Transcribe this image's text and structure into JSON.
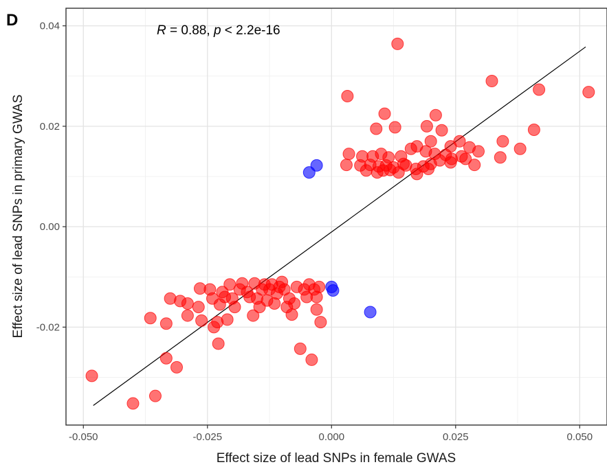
{
  "chart_data": {
    "type": "scatter",
    "panel_label": "D",
    "annotation": {
      "r_label": "R",
      "r_text": " = 0.88, ",
      "p_label": "p",
      "p_text": " < 2.2e-16"
    },
    "xlabel": "Effect size of lead SNPs in female GWAS",
    "ylabel": "Effect size of lead SNPs in primary GWAS",
    "xlim": [
      -0.0535,
      0.0555
    ],
    "ylim": [
      -0.0395,
      0.0435
    ],
    "x_ticks": [
      -0.05,
      -0.025,
      0.0,
      0.025,
      0.05
    ],
    "x_tick_labels": [
      "-0.050",
      "-0.025",
      "0.000",
      "0.025",
      "0.050"
    ],
    "y_ticks": [
      -0.02,
      0.0,
      0.02,
      0.04
    ],
    "y_tick_labels": [
      "-0.02",
      "0.00",
      "0.02",
      "0.04"
    ],
    "grid": true,
    "fit_line": {
      "x": [
        -0.048,
        0.0512
      ],
      "y": [
        -0.0356,
        0.0358
      ],
      "color": "#000000"
    },
    "series": [
      {
        "color": "#ff0000",
        "opacity": 0.55,
        "points": [
          [
            0.0133,
            0.0364
          ],
          [
            0.0032,
            0.026
          ],
          [
            0.0323,
            0.029
          ],
          [
            0.0418,
            0.0273
          ],
          [
            0.0518,
            0.0268
          ],
          [
            0.0107,
            0.0225
          ],
          [
            0.021,
            0.0222
          ],
          [
            0.009,
            0.0195
          ],
          [
            0.0128,
            0.0198
          ],
          [
            0.0192,
            0.02
          ],
          [
            0.0222,
            0.0192
          ],
          [
            0.0408,
            0.0193
          ],
          [
            0.02,
            0.017
          ],
          [
            0.024,
            0.016
          ],
          [
            0.0258,
            0.017
          ],
          [
            0.0278,
            0.0158
          ],
          [
            0.0345,
            0.017
          ],
          [
            0.038,
            0.0155
          ],
          [
            0.0035,
            0.0145
          ],
          [
            0.0062,
            0.014
          ],
          [
            0.0083,
            0.014
          ],
          [
            0.01,
            0.0145
          ],
          [
            0.0115,
            0.0138
          ],
          [
            0.014,
            0.014
          ],
          [
            0.016,
            0.0155
          ],
          [
            0.0172,
            0.016
          ],
          [
            0.019,
            0.015
          ],
          [
            0.0208,
            0.0145
          ],
          [
            0.023,
            0.0143
          ],
          [
            0.0262,
            0.014
          ],
          [
            0.0296,
            0.015
          ],
          [
            0.034,
            0.0138
          ],
          [
            0.003,
            0.0123
          ],
          [
            0.0058,
            0.0122
          ],
          [
            0.0078,
            0.0123
          ],
          [
            0.0095,
            0.012
          ],
          [
            0.011,
            0.0122
          ],
          [
            0.0125,
            0.0118
          ],
          [
            0.0145,
            0.0125
          ],
          [
            0.017,
            0.0115
          ],
          [
            0.0185,
            0.012
          ],
          [
            0.02,
            0.0125
          ],
          [
            0.024,
            0.0128
          ],
          [
            0.027,
            0.0135
          ],
          [
            0.0288,
            0.0123
          ],
          [
            0.007,
            0.0112
          ],
          [
            0.0092,
            0.0108
          ],
          [
            0.0104,
            0.0112
          ],
          [
            0.0118,
            0.0113
          ],
          [
            0.0135,
            0.0108
          ],
          [
            0.015,
            0.0122
          ],
          [
            0.0172,
            0.0105
          ],
          [
            0.0195,
            0.0115
          ],
          [
            0.0218,
            0.0132
          ],
          [
            0.0242,
            0.0135
          ],
          [
            -0.0483,
            -0.0297
          ],
          [
            -0.04,
            -0.0352
          ],
          [
            -0.0355,
            -0.0337
          ],
          [
            -0.0333,
            -0.0262
          ],
          [
            -0.0312,
            -0.028
          ],
          [
            -0.0365,
            -0.0182
          ],
          [
            -0.0333,
            -0.0193
          ],
          [
            -0.0325,
            -0.0143
          ],
          [
            -0.0305,
            -0.0148
          ],
          [
            -0.029,
            -0.0153
          ],
          [
            -0.029,
            -0.0177
          ],
          [
            -0.0268,
            -0.016
          ],
          [
            -0.0265,
            -0.0123
          ],
          [
            -0.0262,
            -0.0187
          ],
          [
            -0.0245,
            -0.0125
          ],
          [
            -0.024,
            -0.0143
          ],
          [
            -0.0237,
            -0.02
          ],
          [
            -0.023,
            -0.019
          ],
          [
            -0.0228,
            -0.0233
          ],
          [
            -0.0225,
            -0.0155
          ],
          [
            -0.022,
            -0.013
          ],
          [
            -0.0215,
            -0.014
          ],
          [
            -0.021,
            -0.0185
          ],
          [
            -0.0205,
            -0.0115
          ],
          [
            -0.02,
            -0.0143
          ],
          [
            -0.0195,
            -0.016
          ],
          [
            -0.0185,
            -0.0125
          ],
          [
            -0.018,
            -0.0113
          ],
          [
            -0.017,
            -0.013
          ],
          [
            -0.0165,
            -0.014
          ],
          [
            -0.0158,
            -0.0177
          ],
          [
            -0.0155,
            -0.0113
          ],
          [
            -0.015,
            -0.0143
          ],
          [
            -0.0145,
            -0.016
          ],
          [
            -0.014,
            -0.0125
          ],
          [
            -0.0135,
            -0.0115
          ],
          [
            -0.013,
            -0.0147
          ],
          [
            -0.0125,
            -0.0125
          ],
          [
            -0.012,
            -0.0115
          ],
          [
            -0.0115,
            -0.0153
          ],
          [
            -0.011,
            -0.0133
          ],
          [
            -0.0105,
            -0.012
          ],
          [
            -0.01,
            -0.011
          ],
          [
            -0.0095,
            -0.0125
          ],
          [
            -0.009,
            -0.016
          ],
          [
            -0.0085,
            -0.0143
          ],
          [
            -0.008,
            -0.0175
          ],
          [
            -0.0075,
            -0.0153
          ],
          [
            -0.007,
            -0.012
          ],
          [
            -0.0063,
            -0.0243
          ],
          [
            -0.0055,
            -0.0125
          ],
          [
            -0.005,
            -0.014
          ],
          [
            -0.0045,
            -0.0115
          ],
          [
            -0.0035,
            -0.0125
          ],
          [
            -0.003,
            -0.014
          ],
          [
            -0.004,
            -0.0265
          ],
          [
            -0.003,
            -0.0165
          ],
          [
            -0.0022,
            -0.019
          ],
          [
            -0.0025,
            -0.012
          ]
        ]
      },
      {
        "color": "#0000ff",
        "opacity": 0.6,
        "points": [
          [
            -0.0045,
            0.0108
          ],
          [
            -0.003,
            0.0122
          ],
          [
            0.0,
            -0.012
          ],
          [
            0.0003,
            -0.0127
          ],
          [
            0.0078,
            -0.017
          ]
        ]
      }
    ]
  }
}
